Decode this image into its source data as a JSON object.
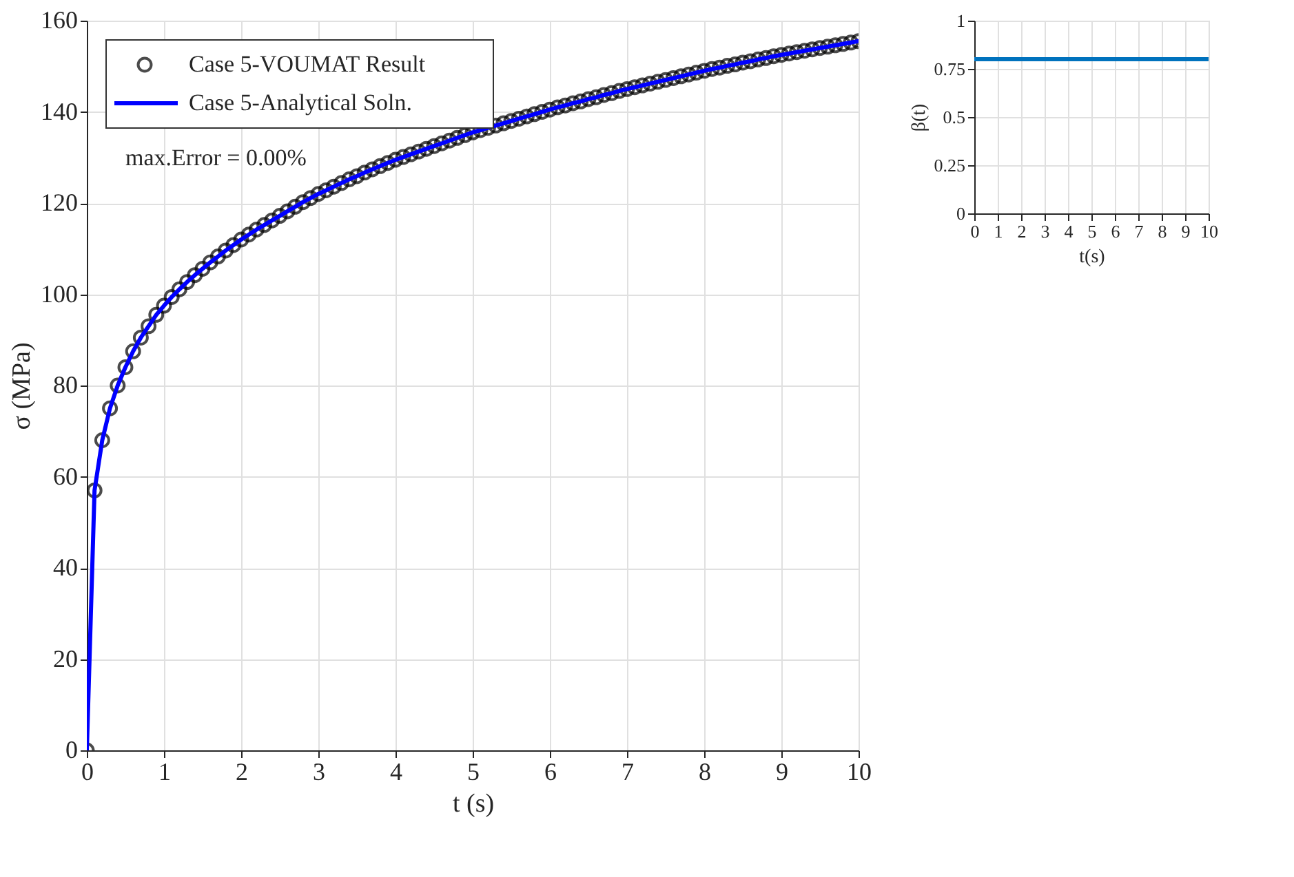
{
  "chart_data": [
    {
      "type": "line",
      "xlabel": "t (s)",
      "ylabel": "σ (MPa)",
      "xlim": [
        0,
        10
      ],
      "ylim": [
        0,
        160
      ],
      "xticks": [
        0,
        1,
        2,
        3,
        4,
        5,
        6,
        7,
        8,
        9,
        10
      ],
      "yticks": [
        0,
        20,
        40,
        60,
        80,
        100,
        120,
        140,
        160
      ],
      "grid": true,
      "legend": "top left",
      "annotations": [
        "max.Error = 0.00%"
      ],
      "x": [
        0,
        0.1,
        0.2,
        0.3,
        0.4,
        0.5,
        0.6,
        0.7,
        0.8,
        0.9,
        1,
        1.1,
        1.2,
        1.3,
        1.4,
        1.5,
        1.6,
        1.7,
        1.8,
        1.9,
        2,
        2.1,
        2.2,
        2.3,
        2.4,
        2.5,
        2.6,
        2.7,
        2.8,
        2.9,
        3,
        3.1,
        3.2,
        3.3,
        3.4,
        3.5,
        3.6,
        3.7,
        3.8,
        3.9,
        4,
        4.1,
        4.2,
        4.3,
        4.4,
        4.5,
        4.6,
        4.7,
        4.8,
        4.9,
        5,
        5.1,
        5.2,
        5.3,
        5.4,
        5.5,
        5.6,
        5.7,
        5.8,
        5.9,
        6,
        6.1,
        6.2,
        6.3,
        6.4,
        6.5,
        6.6,
        6.7,
        6.8,
        6.9,
        7,
        7.1,
        7.2,
        7.3,
        7.4,
        7.5,
        7.6,
        7.7,
        7.8,
        7.9,
        8,
        8.1,
        8.2,
        8.3,
        8.4,
        8.5,
        8.6,
        8.7,
        8.8,
        8.9,
        9,
        9.1,
        9.2,
        9.3,
        9.4,
        9.5,
        9.6,
        9.7,
        9.8,
        9.9,
        10
      ],
      "series": [
        {
          "name": "Case 5-VOUMAT Result",
          "type": "scatter",
          "marker": "circle",
          "color": "#000000",
          "values": [
            0,
            57,
            68,
            75,
            80,
            84,
            87.5,
            90.5,
            93,
            95.5,
            97.5,
            99.4,
            101.1,
            102.7,
            104.2,
            105.6,
            107.0,
            108.3,
            109.6,
            110.8,
            112.0,
            113.1,
            114.2,
            115.2,
            116.2,
            117.2,
            118.2,
            119.2,
            120.2,
            121.1,
            122.0,
            122.8,
            123.6,
            124.4,
            125.2,
            125.9,
            126.7,
            127.4,
            128.1,
            128.8,
            129.5,
            130.1,
            130.7,
            131.3,
            131.9,
            132.5,
            133.1,
            133.7,
            134.3,
            134.9,
            135.5,
            136,
            136.5,
            137,
            137.5,
            138,
            138.5,
            139,
            139.5,
            140,
            140.5,
            141,
            141.4,
            141.9,
            142.3,
            142.8,
            143.2,
            143.7,
            144.1,
            144.6,
            145,
            145.4,
            145.8,
            146.2,
            146.6,
            147,
            147.4,
            147.8,
            148.2,
            148.6,
            149,
            149.4,
            149.7,
            150.1,
            150.4,
            150.8,
            151.1,
            151.5,
            151.8,
            152.2,
            152.5,
            152.8,
            153.1,
            153.4,
            153.7,
            154,
            154.3,
            154.6,
            154.9,
            155.2,
            155.5
          ]
        },
        {
          "name": "Case 5-Analytical Soln.",
          "color": "#0000ff",
          "values": [
            0,
            57,
            68,
            75,
            80,
            84,
            87.5,
            90.5,
            93,
            95.5,
            97.5,
            99.4,
            101.1,
            102.7,
            104.2,
            105.6,
            107.0,
            108.3,
            109.6,
            110.8,
            112.0,
            113.1,
            114.2,
            115.2,
            116.2,
            117.2,
            118.2,
            119.2,
            120.2,
            121.1,
            122.0,
            122.8,
            123.6,
            124.4,
            125.2,
            125.9,
            126.7,
            127.4,
            128.1,
            128.8,
            129.5,
            130.1,
            130.7,
            131.3,
            131.9,
            132.5,
            133.1,
            133.7,
            134.3,
            134.9,
            135.5,
            136,
            136.5,
            137,
            137.5,
            138,
            138.5,
            139,
            139.5,
            140,
            140.5,
            141,
            141.4,
            141.9,
            142.3,
            142.8,
            143.2,
            143.7,
            144.1,
            144.6,
            145,
            145.4,
            145.8,
            146.2,
            146.6,
            147,
            147.4,
            147.8,
            148.2,
            148.6,
            149,
            149.4,
            149.7,
            150.1,
            150.4,
            150.8,
            151.1,
            151.5,
            151.8,
            152.2,
            152.5,
            152.8,
            153.1,
            153.4,
            153.7,
            154,
            154.3,
            154.6,
            154.9,
            155.2,
            155.5
          ]
        }
      ]
    },
    {
      "type": "line",
      "xlabel": "t(s)",
      "ylabel": "β(t)",
      "xlim": [
        0,
        10
      ],
      "ylim": [
        0,
        1
      ],
      "xticks": [
        0,
        1,
        2,
        3,
        4,
        5,
        6,
        7,
        8,
        9,
        10
      ],
      "yticks": [
        0,
        0.25,
        0.5,
        0.75,
        1
      ],
      "grid": true,
      "x": [
        0,
        10
      ],
      "series": [
        {
          "color": "#0072bd",
          "values": [
            0.8,
            0.8
          ]
        }
      ]
    }
  ]
}
